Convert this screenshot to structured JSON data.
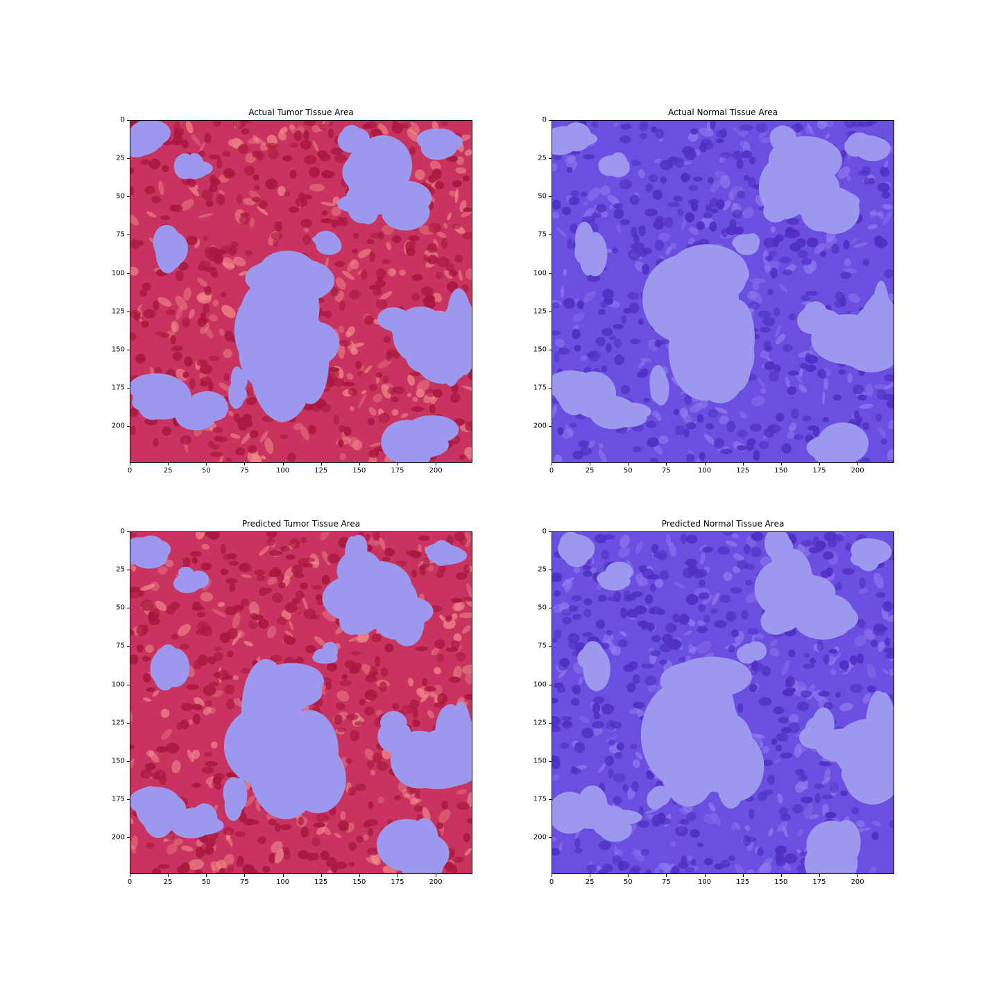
{
  "figure": {
    "panels": [
      {
        "key": "actual_tumor",
        "title": "Actual Tumor Tissue Area",
        "image_description": "H&E tissue patch with tumor overlay in red and background lumen in light blue",
        "palette": {
          "base": "#c8335f",
          "dark": "#a8183e",
          "light": "#f08a8a",
          "lumen": "#9c98ee"
        }
      },
      {
        "key": "actual_normal",
        "title": "Actual Normal Tissue Area",
        "image_description": "H&E tissue patch with normal overlay in purple and background lumen in light blue",
        "palette": {
          "base": "#6a4fe0",
          "dark": "#4f2fc2",
          "light": "#8f7cf0",
          "lumen": "#9c98ee"
        }
      },
      {
        "key": "predicted_tumor",
        "title": "Predicted Tumor Tissue Area",
        "image_description": "H&E tissue patch with predicted tumor overlay in red and background lumen in light blue",
        "palette": {
          "base": "#c8335f",
          "dark": "#a8183e",
          "light": "#f08a8a",
          "lumen": "#9c98ee"
        }
      },
      {
        "key": "predicted_normal",
        "title": "Predicted Normal Tissue Area",
        "image_description": "H&E tissue patch with predicted normal overlay in purple and background lumen in light blue",
        "palette": {
          "base": "#6a4fe0",
          "dark": "#4f2fc2",
          "light": "#8f7cf0",
          "lumen": "#9c98ee"
        }
      }
    ],
    "x_ticks": [
      "0",
      "25",
      "50",
      "75",
      "100",
      "125",
      "150",
      "175",
      "200"
    ],
    "y_ticks": [
      "0",
      "25",
      "50",
      "75",
      "100",
      "125",
      "150",
      "175",
      "200"
    ],
    "axis_range": [
      0,
      224
    ]
  }
}
